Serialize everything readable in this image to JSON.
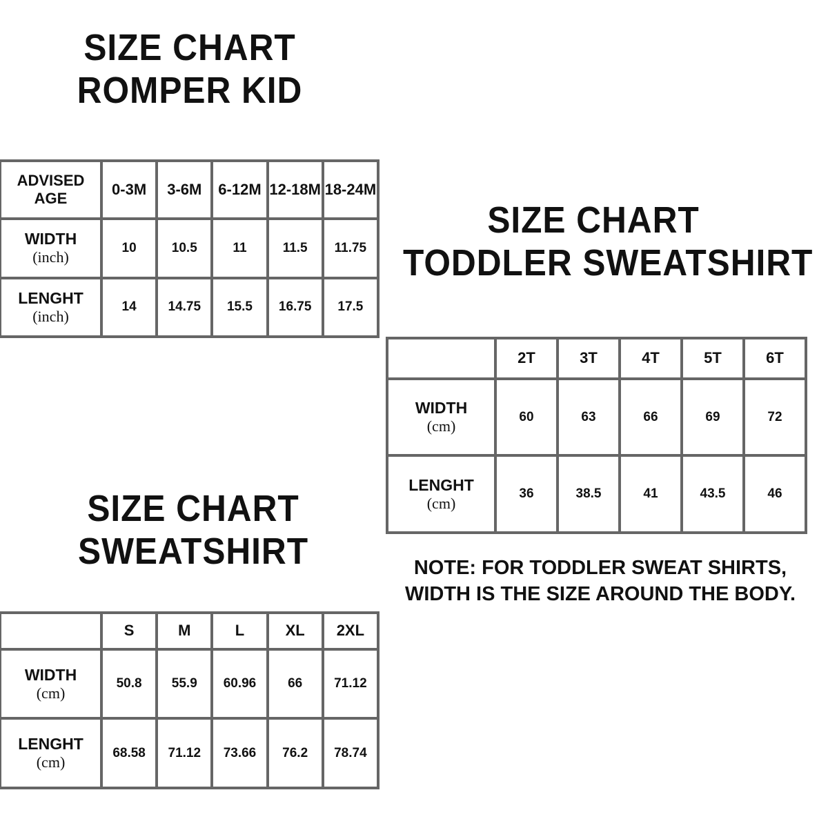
{
  "romper": {
    "title": [
      "SIZE CHART",
      "ROMPER KID"
    ],
    "header_label": "ADVISED AGE",
    "sizes": [
      "0-3M",
      "3-6M",
      "6-12M",
      "12-18M",
      "18-24M"
    ],
    "rows": [
      {
        "label": "WIDTH",
        "unit": "(inch)",
        "values": [
          "10",
          "10.5",
          "11",
          "11.5",
          "11.75"
        ]
      },
      {
        "label": "LENGHT",
        "unit": "(inch)",
        "values": [
          "14",
          "14.75",
          "15.5",
          "16.75",
          "17.5"
        ]
      }
    ]
  },
  "toddler": {
    "title": [
      "SIZE CHART",
      "TODDLER SWEATSHIRT"
    ],
    "header_label": "",
    "sizes": [
      "2T",
      "3T",
      "4T",
      "5T",
      "6T"
    ],
    "rows": [
      {
        "label": "WIDTH",
        "unit": "(cm)",
        "values": [
          "60",
          "63",
          "66",
          "69",
          "72"
        ]
      },
      {
        "label": "LENGHT",
        "unit": "(cm)",
        "values": [
          "36",
          "38.5",
          "41",
          "43.5",
          "46"
        ]
      }
    ],
    "note": [
      "NOTE: FOR TODDLER SWEAT SHIRTS,",
      "WIDTH IS THE SIZE AROUND THE BODY."
    ]
  },
  "sweatshirt": {
    "title": [
      "SIZE CHART",
      "SWEATSHIRT"
    ],
    "header_label": "",
    "sizes": [
      "S",
      "M",
      "L",
      "XL",
      "2XL"
    ],
    "rows": [
      {
        "label": "WIDTH",
        "unit": "(cm)",
        "values": [
          "50.8",
          "55.9",
          "60.96",
          "66",
          "71.12"
        ]
      },
      {
        "label": "LENGHT",
        "unit": "(cm)",
        "values": [
          "68.58",
          "71.12",
          "73.66",
          "76.2",
          "78.74"
        ]
      }
    ]
  },
  "colors": {
    "border": "#666666",
    "text": "#111111"
  }
}
